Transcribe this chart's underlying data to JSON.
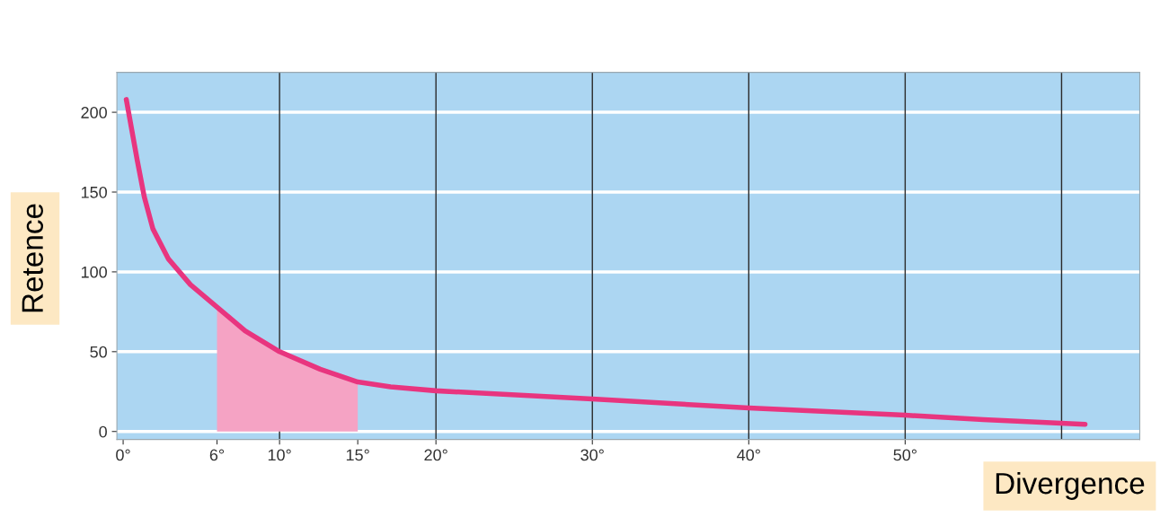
{
  "chart_data": {
    "type": "line",
    "xlabel": "Divergence",
    "ylabel": "Retence",
    "x": [
      0.2,
      0.9,
      1.35,
      1.9,
      2.9,
      4.3,
      6,
      7.8,
      10,
      12.6,
      15,
      17.1,
      20,
      30,
      40,
      50,
      55,
      61.5
    ],
    "series": [
      {
        "type": "area",
        "color": "#f5a3c4",
        "x": [
          6,
          7.8,
          10,
          12.6,
          15
        ],
        "values": [
          78,
          63,
          50,
          39,
          31
        ]
      },
      {
        "color": "#e8357f",
        "values": [
          208,
          170,
          147,
          127,
          108,
          92,
          78,
          63,
          50,
          39,
          31,
          28,
          25.5,
          20.4,
          14.7,
          10.2,
          7.4,
          4.5
        ]
      }
    ],
    "xlim": [
      -0.4,
      65
    ],
    "ylim": [
      -5,
      225
    ],
    "xticks": [
      {
        "value": 0,
        "label": "0°"
      },
      {
        "value": 6,
        "label": "6°"
      },
      {
        "value": 10,
        "label": "10°"
      },
      {
        "value": 15,
        "label": "15°"
      },
      {
        "value": 20,
        "label": "20°"
      },
      {
        "value": 30,
        "label": "30°"
      },
      {
        "value": 40,
        "label": "40°"
      },
      {
        "value": 50,
        "label": "50°"
      }
    ],
    "yticks": [
      0,
      50,
      100,
      150,
      200
    ],
    "grid": "y",
    "ref_lines": [
      {
        "axis": "x",
        "value": 10,
        "color": "#2a2a2a"
      },
      {
        "axis": "x",
        "value": 20,
        "color": "#2a2a2a"
      },
      {
        "axis": "x",
        "value": 30,
        "color": "#2a2a2a"
      },
      {
        "axis": "x",
        "value": 40,
        "color": "#2a2a2a"
      },
      {
        "axis": "x",
        "value": 50,
        "color": "#2a2a2a"
      },
      {
        "axis": "x",
        "value": 60,
        "color": "#2a2a2a"
      }
    ]
  }
}
